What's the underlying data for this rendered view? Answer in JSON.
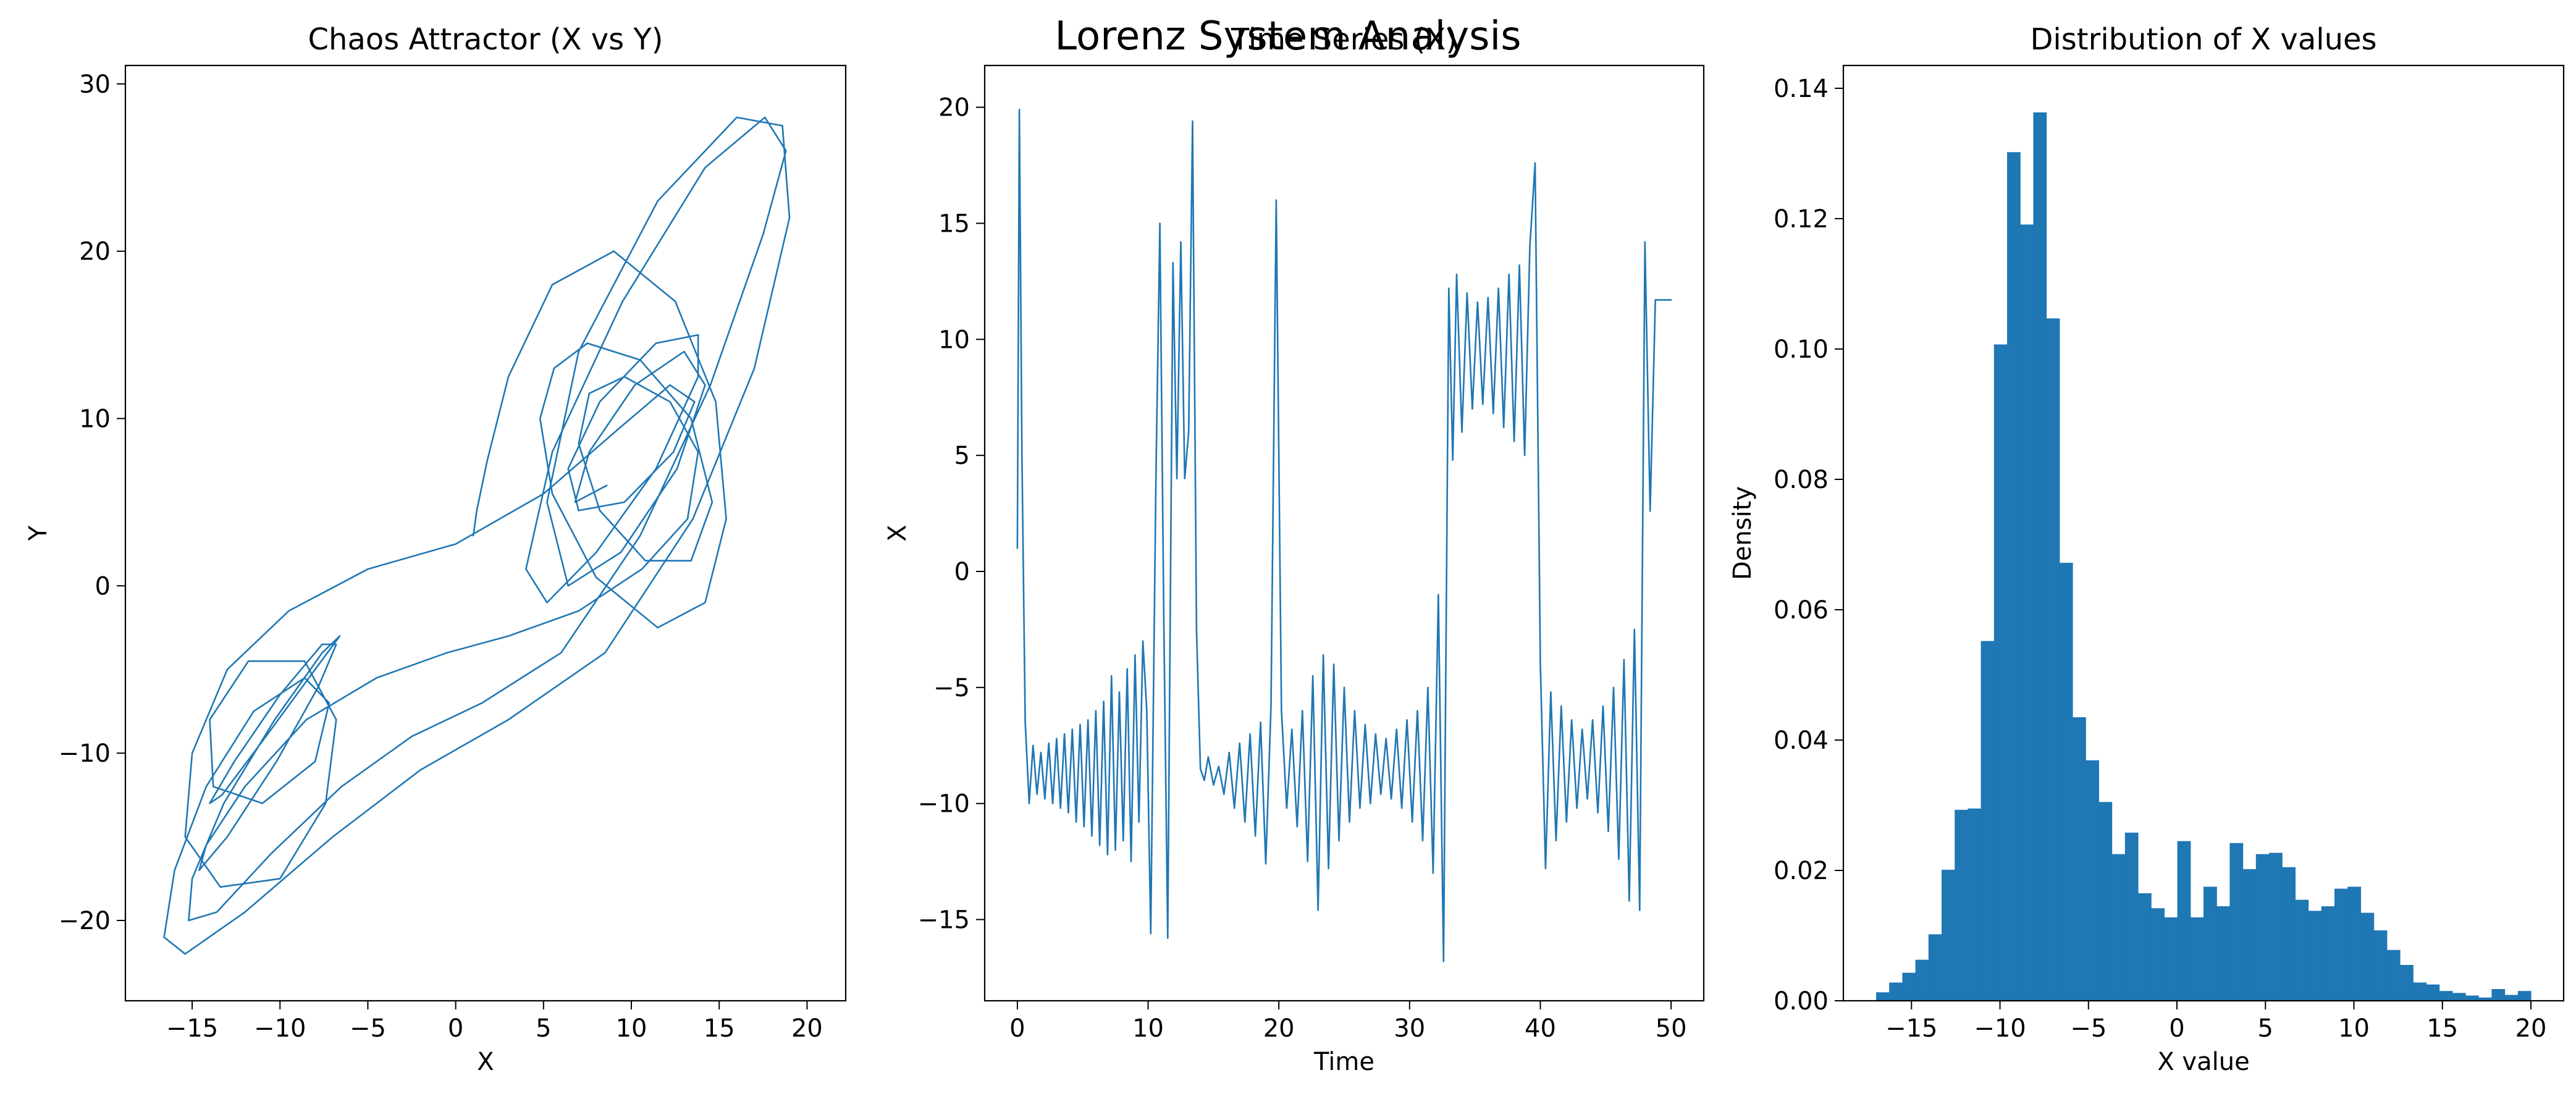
{
  "figure": {
    "suptitle": "Lorenz System Analysis",
    "colors": {
      "line": "#1f77b4",
      "bar": "#1f77b4",
      "axes": "#000000",
      "background": "#ffffff"
    }
  },
  "chart_data": [
    {
      "type": "line",
      "title": "Chaos Attractor (X vs Y)",
      "xlabel": "X",
      "ylabel": "Y",
      "xlim": [
        -18.8,
        22.2
      ],
      "ylim": [
        -24.8,
        31.1
      ],
      "xticks": [
        -15,
        -10,
        -5,
        0,
        5,
        10,
        15,
        20
      ],
      "yticks": [
        -20,
        -10,
        0,
        10,
        20,
        30
      ],
      "xtick_labels": [
        "−15",
        "−10",
        "−5",
        "0",
        "5",
        "10",
        "15",
        "20"
      ],
      "ytick_labels": [
        "−20",
        "−10",
        "0",
        "10",
        "20",
        "30"
      ],
      "grid": false,
      "legend": null,
      "series": [
        {
          "x": [
            1.0,
            1.2,
            1.8,
            3.0,
            5.5,
            9.0,
            12.5,
            14.8,
            15.4,
            14.2,
            11.5,
            8.0,
            5.5,
            4.8,
            5.6,
            7.5,
            10.5,
            13.4,
            14.6,
            13.4,
            10.8,
            8.2,
            7.0,
            7.6,
            9.6,
            12.2,
            13.8,
            13.2,
            10.6,
            7.0,
            3.0,
            -0.5,
            -4.5,
            -8.5,
            -12.0,
            -14.2,
            -14.6,
            -13.0,
            -10.2,
            -7.8,
            -6.8,
            -7.6,
            -10.0,
            -12.6,
            -14.0,
            -13.3,
            -10.8,
            -8.0,
            -6.6,
            -7.6,
            -10.3,
            -13.2,
            -15.0,
            -15.2,
            -13.6,
            -10.5,
            -6.5,
            -2.5,
            1.5,
            6.0,
            10.5,
            14.5,
            17.5,
            18.8,
            17.6,
            14.2,
            9.5,
            5.5,
            4.0,
            5.2,
            8.0,
            11.4,
            13.8,
            13.8,
            11.4,
            8.2,
            6.4,
            7.0,
            9.6,
            12.4,
            13.6,
            12.2,
            9.4,
            5.0,
            0.0,
            -5.0,
            -9.5,
            -13.0,
            -15.0,
            -15.4,
            -13.4,
            -10.0,
            -7.4,
            -6.8,
            -8.6,
            -11.8,
            -14.0,
            -13.8,
            -11.0,
            -8.0,
            -7.2,
            -8.6,
            -11.5,
            -14.2,
            -16.0,
            -16.6,
            -15.4,
            -12.0,
            -7.0,
            -2.0,
            3.0,
            8.5,
            13.5,
            17.0,
            19.0,
            18.6,
            16.0,
            11.5,
            7.0,
            5.2,
            6.4,
            9.4,
            12.6,
            14.2,
            13.0,
            10.2,
            7.6,
            6.8,
            8.6
          ],
          "y": [
            3.0,
            4.5,
            7.5,
            12.5,
            18.0,
            20.0,
            17.0,
            11.0,
            4.0,
            -1.0,
            -2.5,
            0.5,
            5.5,
            10.0,
            13.0,
            14.5,
            13.5,
            10.0,
            5.0,
            1.5,
            1.5,
            4.5,
            8.5,
            11.5,
            12.5,
            11.0,
            8.0,
            4.0,
            1.0,
            -1.5,
            -3.0,
            -4.0,
            -5.5,
            -8.0,
            -12.0,
            -15.5,
            -17.0,
            -15.0,
            -10.5,
            -6.0,
            -3.5,
            -3.5,
            -6.5,
            -10.5,
            -13.0,
            -12.5,
            -9.0,
            -5.0,
            -3.0,
            -4.0,
            -8.0,
            -13.0,
            -17.5,
            -20.0,
            -19.5,
            -16.0,
            -12.0,
            -9.0,
            -7.0,
            -4.0,
            3.0,
            12.0,
            21.0,
            26.0,
            28.0,
            25.0,
            17.0,
            8.0,
            1.0,
            -1.0,
            2.0,
            7.0,
            12.5,
            15.0,
            14.5,
            11.0,
            7.0,
            4.5,
            5.0,
            8.0,
            11.0,
            12.0,
            9.5,
            5.5,
            2.5,
            1.0,
            -1.5,
            -5.0,
            -10.0,
            -15.0,
            -18.0,
            -17.5,
            -13.0,
            -8.0,
            -4.5,
            -4.5,
            -8.0,
            -12.0,
            -13.0,
            -10.5,
            -7.0,
            -5.5,
            -7.5,
            -12.0,
            -17.0,
            -21.0,
            -22.0,
            -19.5,
            -15.0,
            -11.0,
            -8.0,
            -4.0,
            4.0,
            13.0,
            22.0,
            27.5,
            28.0,
            23.0,
            14.0,
            5.0,
            0.0,
            2.0,
            7.0,
            12.0,
            14.0,
            12.0,
            8.0,
            5.0,
            6.0
          ]
        }
      ]
    },
    {
      "type": "line",
      "title": "Time Series (X)",
      "xlabel": "Time",
      "ylabel": "X",
      "xlim": [
        -2.5,
        52.5
      ],
      "ylim": [
        -18.5,
        21.8
      ],
      "xticks": [
        0,
        10,
        20,
        30,
        40,
        50
      ],
      "yticks": [
        -15,
        -10,
        -5,
        0,
        5,
        10,
        15,
        20
      ],
      "xtick_labels": [
        "0",
        "10",
        "20",
        "30",
        "40",
        "50"
      ],
      "ytick_labels": [
        "−15",
        "−10",
        "−5",
        "0",
        "5",
        "10",
        "15",
        "20"
      ],
      "grid": false,
      "legend": null,
      "series": [
        {
          "x": [
            0.0,
            0.15,
            0.35,
            0.6,
            0.9,
            1.2,
            1.5,
            1.8,
            2.1,
            2.4,
            2.7,
            3.0,
            3.3,
            3.6,
            3.9,
            4.2,
            4.5,
            4.8,
            5.1,
            5.4,
            5.7,
            6.0,
            6.3,
            6.6,
            6.9,
            7.2,
            7.5,
            7.8,
            8.1,
            8.4,
            8.7,
            9.0,
            9.3,
            9.6,
            9.9,
            10.2,
            10.6,
            10.9,
            11.2,
            11.5,
            11.9,
            12.2,
            12.5,
            12.8,
            13.1,
            13.4,
            13.7,
            14.0,
            14.3,
            14.6,
            15.0,
            15.4,
            15.8,
            16.2,
            16.6,
            17.0,
            17.4,
            17.8,
            18.2,
            18.6,
            19.0,
            19.4,
            19.8,
            20.2,
            20.6,
            21.0,
            21.4,
            21.8,
            22.2,
            22.6,
            23.0,
            23.4,
            23.8,
            24.2,
            24.6,
            25.0,
            25.4,
            25.8,
            26.2,
            26.6,
            27.0,
            27.4,
            27.8,
            28.2,
            28.6,
            29.0,
            29.4,
            29.8,
            30.2,
            30.6,
            31.0,
            31.4,
            31.8,
            32.2,
            32.6,
            33.0,
            33.3,
            33.6,
            34.0,
            34.4,
            34.8,
            35.2,
            35.6,
            36.0,
            36.4,
            36.8,
            37.2,
            37.6,
            38.0,
            38.4,
            38.8,
            39.2,
            39.6,
            40.0,
            40.4,
            40.8,
            41.2,
            41.6,
            42.0,
            42.4,
            42.8,
            43.2,
            43.6,
            44.0,
            44.4,
            44.8,
            45.2,
            45.6,
            46.0,
            46.4,
            46.8,
            47.2,
            47.6,
            48.0,
            48.4,
            48.8,
            49.2,
            49.6,
            50.0
          ],
          "y": [
            1.0,
            19.9,
            5.0,
            -6.5,
            -10.0,
            -7.5,
            -9.6,
            -7.8,
            -9.8,
            -7.4,
            -10.0,
            -7.2,
            -10.2,
            -7.0,
            -10.4,
            -6.8,
            -10.8,
            -6.6,
            -11.0,
            -6.4,
            -11.4,
            -6.0,
            -11.8,
            -5.6,
            -12.2,
            -4.5,
            -12.0,
            -5.2,
            -11.6,
            -4.2,
            -12.5,
            -3.6,
            -10.8,
            -3.0,
            -6.0,
            -15.6,
            4.0,
            15.0,
            -2.0,
            -15.8,
            13.3,
            4.0,
            14.2,
            4.0,
            6.0,
            19.4,
            -2.5,
            -8.5,
            -9.0,
            -8.0,
            -9.2,
            -8.4,
            -9.6,
            -7.8,
            -10.2,
            -7.4,
            -10.8,
            -7.0,
            -11.4,
            -6.5,
            -12.6,
            -5.8,
            16.0,
            -6.0,
            -10.2,
            -6.8,
            -11.0,
            -6.0,
            -12.5,
            -4.5,
            -14.6,
            -3.6,
            -12.8,
            -4.0,
            -11.6,
            -5.0,
            -10.8,
            -6.0,
            -10.2,
            -6.6,
            -10.0,
            -7.0,
            -9.6,
            -7.2,
            -9.8,
            -6.8,
            -10.2,
            -6.4,
            -10.8,
            -6.0,
            -11.6,
            -5.0,
            -13.0,
            -1.0,
            -16.8,
            12.2,
            4.8,
            12.8,
            6.0,
            12.0,
            7.0,
            11.6,
            7.2,
            11.8,
            6.8,
            12.2,
            6.2,
            12.8,
            5.6,
            13.2,
            5.0,
            14.0,
            17.6,
            -4.0,
            -12.8,
            -5.2,
            -11.6,
            -5.8,
            -10.8,
            -6.4,
            -10.2,
            -6.8,
            -9.8,
            -6.4,
            -10.4,
            -5.8,
            -11.2,
            -5.0,
            -12.4,
            -3.8,
            -14.2,
            -2.5,
            -14.6,
            14.2,
            2.6,
            11.7,
            11.7,
            11.7,
            11.7
          ]
        }
      ]
    },
    {
      "type": "bar",
      "title": "Distribution of X values",
      "xlabel": "X value",
      "ylabel": "Density",
      "xlim": [
        -18.85,
        21.85
      ],
      "ylim": [
        0.0,
        0.1435
      ],
      "xticks": [
        -15,
        -10,
        -5,
        0,
        5,
        10,
        15,
        20
      ],
      "yticks": [
        0.0,
        0.02,
        0.04,
        0.06,
        0.08,
        0.1,
        0.12,
        0.14
      ],
      "xtick_labels": [
        "−15",
        "−10",
        "−5",
        "0",
        "5",
        "10",
        "15",
        "20"
      ],
      "ytick_labels": [
        "0.00",
        "0.02",
        "0.04",
        "0.06",
        "0.08",
        "0.10",
        "0.12",
        "0.14"
      ],
      "grid": false,
      "legend": null,
      "bins": {
        "start": -17.0,
        "width": 0.74,
        "values": [
          0.0013,
          0.0028,
          0.0043,
          0.0063,
          0.0102,
          0.0201,
          0.0293,
          0.0295,
          0.0552,
          0.1007,
          0.1302,
          0.1191,
          0.1363,
          0.1047,
          0.0672,
          0.0435,
          0.0369,
          0.0305,
          0.0225,
          0.0258,
          0.0165,
          0.0142,
          0.0128,
          0.0245,
          0.0128,
          0.0175,
          0.0145,
          0.0242,
          0.0202,
          0.0225,
          0.0227,
          0.0205,
          0.0155,
          0.0138,
          0.0145,
          0.0172,
          0.0175,
          0.0135,
          0.0108,
          0.0078,
          0.0055,
          0.0028,
          0.0025,
          0.0015,
          0.0012,
          0.0008,
          0.0005,
          0.0018,
          0.0009,
          0.0015
        ]
      }
    }
  ]
}
